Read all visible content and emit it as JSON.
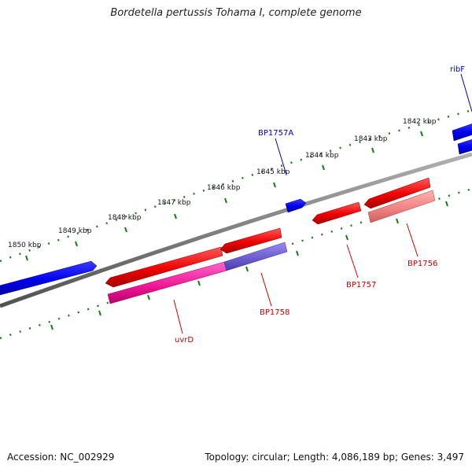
{
  "title": "Bordetella pertussis Tohama I, complete genome",
  "footer": {
    "accession": "Accession: NC_002929",
    "summary": "Topology: circular; Length: 4,086,189 bp; Genes: 3,497"
  },
  "ticks": [
    {
      "label": "1850 kbp"
    },
    {
      "label": "1849 kbp"
    },
    {
      "label": "1848 kbp"
    },
    {
      "label": "1847 kbp"
    },
    {
      "label": "1846 kbp"
    },
    {
      "label": "1845 kbp"
    },
    {
      "label": "1844 kbp"
    },
    {
      "label": "1843 kbp"
    },
    {
      "label": "1842 kbp"
    }
  ],
  "genes": [
    {
      "name": "ribF",
      "strand": "forward",
      "color": "#0000cc"
    },
    {
      "name": "BP1757A",
      "strand": "forward",
      "color": "#0000cc"
    },
    {
      "name": "uvrD",
      "strand": "reverse",
      "color": "#cc0000"
    },
    {
      "name": "BP1758",
      "strand": "reverse",
      "color": "#cc0000"
    },
    {
      "name": "BP1757",
      "strand": "reverse",
      "color": "#cc0000"
    },
    {
      "name": "BP1756",
      "strand": "reverse",
      "color": "#cc0000"
    }
  ],
  "colors": {
    "forward_gene": "#0000ee",
    "reverse_gene": "#ee0000",
    "backbone": "#808080",
    "tick": "#1a7a1a",
    "forward_label": "#0000aa",
    "reverse_label": "#cc0000"
  }
}
